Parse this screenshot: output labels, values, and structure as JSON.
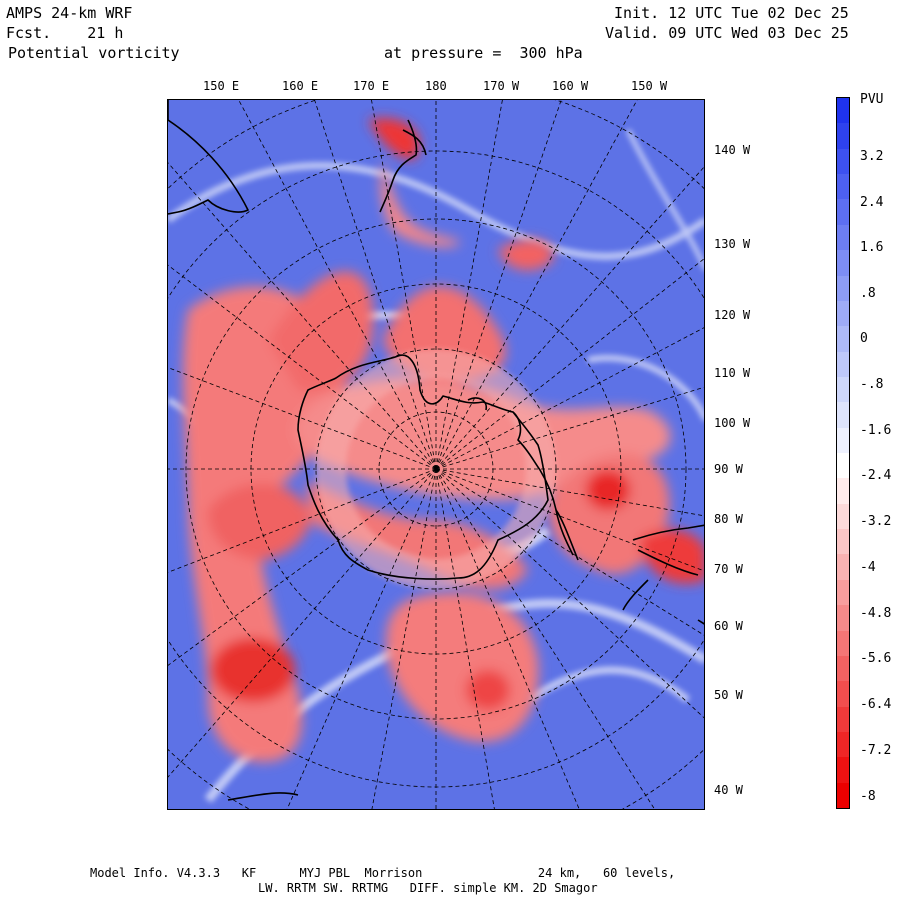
{
  "header": {
    "model": "AMPS 24-km WRF",
    "forecast": "Fcst.    21 h",
    "variable": "Potential vorticity",
    "level": "at pressure =  300 hPa",
    "init": "Init. 12 UTC Tue 02 Dec 25",
    "valid": "Valid. 09 UTC Wed 03 Dec 25"
  },
  "lon_top_labels": [
    "150 E",
    "160 E",
    "170 E",
    "180",
    "170 W",
    "160 W",
    "150 W"
  ],
  "lon_right_labels": [
    "140 W",
    "130 W",
    "120 W",
    "110 W",
    "100 W",
    "90 W",
    "80 W",
    "70 W",
    "60 W",
    "50 W",
    "40 W"
  ],
  "colorbar": {
    "unit": "PVU",
    "ticks": [
      "3.2",
      "2.4",
      "1.6",
      ".8",
      "0",
      "-.8",
      "-1.6",
      "-2.4",
      "-3.2",
      "-4",
      "-4.8",
      "-5.6",
      "-6.4",
      "-7.2",
      "-8"
    ],
    "positive_color": "#2a3ff0",
    "negative_color": "#ee1111"
  },
  "footer": {
    "line1": "Model Info. V4.3.3   KF      MYJ PBL  Morrison                24 km,   60 levels,",
    "line2": "LW. RRTM SW. RRTMG   DIFF. simple KM. 2D Smagor"
  }
}
